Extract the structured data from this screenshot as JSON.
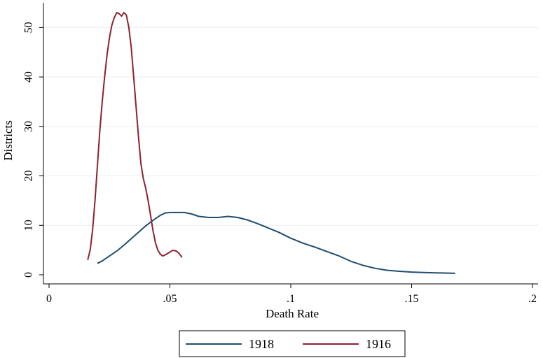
{
  "chart_data": {
    "type": "line",
    "title": "",
    "xlabel": "Death Rate",
    "ylabel": "Districts",
    "xlim": [
      0,
      0.2
    ],
    "ylim": [
      0,
      55
    ],
    "x_ticks": [
      {
        "value": 0,
        "label": "0"
      },
      {
        "value": 0.05,
        "label": ".05"
      },
      {
        "value": 0.1,
        "label": ".1"
      },
      {
        "value": 0.15,
        "label": ".15"
      },
      {
        "value": 0.2,
        "label": ".2"
      }
    ],
    "y_ticks": [
      {
        "value": 0,
        "label": "0"
      },
      {
        "value": 10,
        "label": "10"
      },
      {
        "value": 20,
        "label": "20"
      },
      {
        "value": 30,
        "label": "30"
      },
      {
        "value": 40,
        "label": "40"
      },
      {
        "value": 50,
        "label": "50"
      }
    ],
    "grid": true,
    "legend_position": "bottom",
    "series": [
      {
        "name": "1918",
        "color": "#1f4e6e",
        "points": [
          [
            0.02,
            2.3
          ],
          [
            0.022,
            2.8
          ],
          [
            0.025,
            3.8
          ],
          [
            0.028,
            4.8
          ],
          [
            0.031,
            6.0
          ],
          [
            0.034,
            7.3
          ],
          [
            0.037,
            8.6
          ],
          [
            0.04,
            9.9
          ],
          [
            0.043,
            11.0
          ],
          [
            0.046,
            12.0
          ],
          [
            0.048,
            12.5
          ],
          [
            0.05,
            12.6
          ],
          [
            0.053,
            12.6
          ],
          [
            0.056,
            12.6
          ],
          [
            0.059,
            12.3
          ],
          [
            0.062,
            11.8
          ],
          [
            0.066,
            11.6
          ],
          [
            0.07,
            11.6
          ],
          [
            0.074,
            11.8
          ],
          [
            0.078,
            11.6
          ],
          [
            0.082,
            11.1
          ],
          [
            0.086,
            10.4
          ],
          [
            0.09,
            9.6
          ],
          [
            0.095,
            8.6
          ],
          [
            0.1,
            7.4
          ],
          [
            0.105,
            6.4
          ],
          [
            0.11,
            5.6
          ],
          [
            0.115,
            4.7
          ],
          [
            0.12,
            3.8
          ],
          [
            0.125,
            2.7
          ],
          [
            0.13,
            1.9
          ],
          [
            0.135,
            1.3
          ],
          [
            0.14,
            0.9
          ],
          [
            0.145,
            0.7
          ],
          [
            0.15,
            0.55
          ],
          [
            0.155,
            0.45
          ],
          [
            0.16,
            0.4
          ],
          [
            0.168,
            0.3
          ]
        ]
      },
      {
        "name": "1916",
        "color": "#8b2330",
        "points": [
          [
            0.016,
            3.0
          ],
          [
            0.017,
            5.0
          ],
          [
            0.018,
            9.0
          ],
          [
            0.019,
            15.0
          ],
          [
            0.02,
            22.0
          ],
          [
            0.021,
            29.0
          ],
          [
            0.022,
            35.0
          ],
          [
            0.023,
            40.0
          ],
          [
            0.024,
            44.5
          ],
          [
            0.025,
            48.0
          ],
          [
            0.026,
            50.5
          ],
          [
            0.027,
            52.0
          ],
          [
            0.028,
            53.0
          ],
          [
            0.029,
            52.8
          ],
          [
            0.03,
            52.3
          ],
          [
            0.031,
            53.0
          ],
          [
            0.032,
            52.5
          ],
          [
            0.033,
            50.0
          ],
          [
            0.034,
            46.0
          ],
          [
            0.035,
            40.0
          ],
          [
            0.036,
            34.0
          ],
          [
            0.037,
            28.0
          ],
          [
            0.038,
            22.5
          ],
          [
            0.039,
            19.5
          ],
          [
            0.04,
            17.5
          ],
          [
            0.041,
            15.0
          ],
          [
            0.042,
            12.0
          ],
          [
            0.043,
            9.0
          ],
          [
            0.044,
            6.5
          ],
          [
            0.045,
            5.0
          ],
          [
            0.046,
            4.2
          ],
          [
            0.047,
            3.8
          ],
          [
            0.048,
            4.0
          ],
          [
            0.049,
            4.3
          ],
          [
            0.05,
            4.6
          ],
          [
            0.051,
            4.9
          ],
          [
            0.052,
            4.9
          ],
          [
            0.053,
            4.7
          ],
          [
            0.054,
            4.2
          ],
          [
            0.055,
            3.5
          ]
        ]
      }
    ]
  }
}
